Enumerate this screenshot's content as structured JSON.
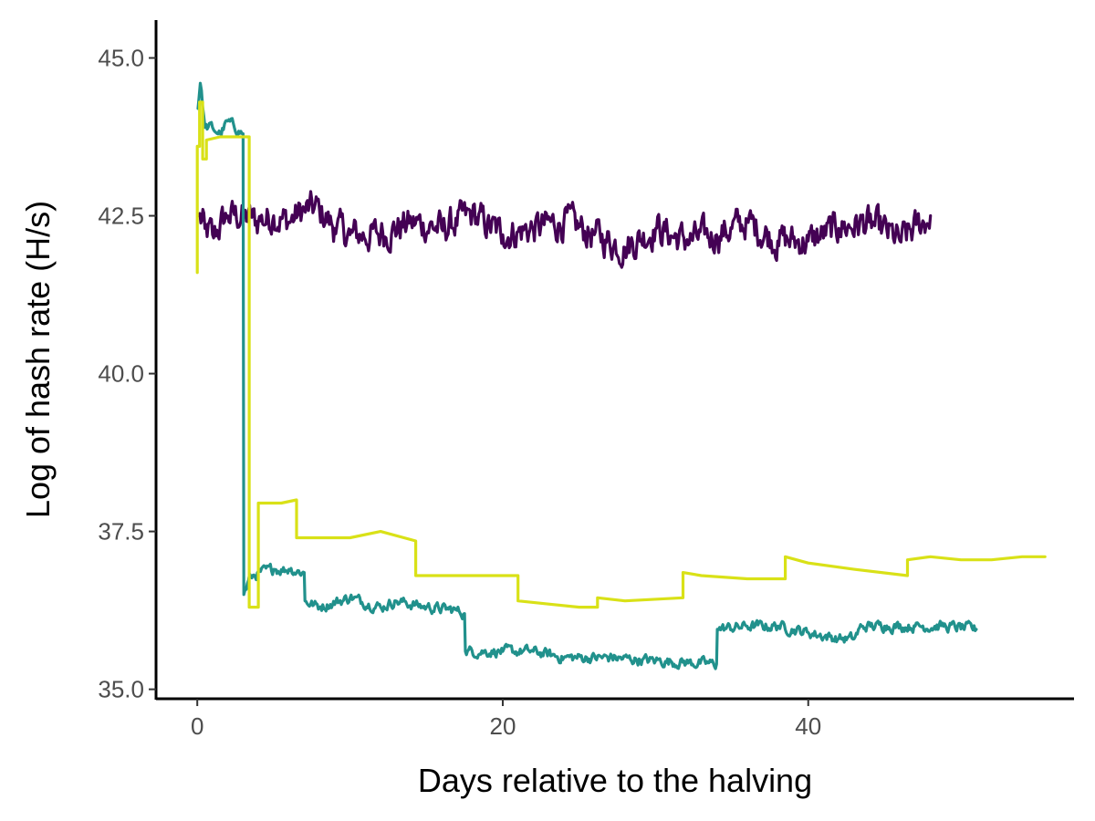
{
  "chart_data": {
    "type": "line",
    "title": "",
    "xlabel": "Days relative to the halving",
    "ylabel": "Log of hash rate (H/s)",
    "xlim": [
      -2.7,
      57.4
    ],
    "ylim": [
      34.85,
      45.6
    ],
    "xticks": [
      0,
      20,
      40
    ],
    "xtick_labels": [
      "0",
      "20",
      "40"
    ],
    "yticks": [
      35.0,
      37.5,
      40.0,
      42.5,
      45.0
    ],
    "ytick_labels": [
      "35.0",
      "37.5",
      "40.0",
      "42.5",
      "45.0"
    ],
    "grid": false,
    "legend": "none",
    "series": [
      {
        "color": "#440154",
        "noise": 0.22,
        "points": [
          [
            0.1,
            42.5
          ],
          [
            0.5,
            42.3
          ],
          [
            1,
            42.2
          ],
          [
            2,
            42.5
          ],
          [
            3,
            42.5
          ],
          [
            4,
            42.4
          ],
          [
            5,
            42.5
          ],
          [
            6,
            42.4
          ],
          [
            7,
            42.6
          ],
          [
            8,
            42.6
          ],
          [
            9,
            42.3
          ],
          [
            10,
            42.2
          ],
          [
            12,
            42.2
          ],
          [
            14,
            42.4
          ],
          [
            16,
            42.3
          ],
          [
            18,
            42.5
          ],
          [
            20,
            42.2
          ],
          [
            22,
            42.3
          ],
          [
            24,
            42.4
          ],
          [
            26,
            42.2
          ],
          [
            28,
            42.0
          ],
          [
            30,
            42.3
          ],
          [
            32,
            42.1
          ],
          [
            34,
            42.2
          ],
          [
            36,
            42.4
          ],
          [
            38,
            42.1
          ],
          [
            40,
            42.1
          ],
          [
            42,
            42.3
          ],
          [
            44,
            42.4
          ],
          [
            46,
            42.1
          ],
          [
            48,
            42.5
          ]
        ]
      },
      {
        "color": "#21918c",
        "noise": 0.07,
        "points": [
          [
            0.05,
            44.2
          ],
          [
            0.2,
            44.6
          ],
          [
            0.5,
            43.9
          ],
          [
            1,
            43.9
          ],
          [
            1.5,
            43.8
          ],
          [
            2,
            44.0
          ],
          [
            3,
            43.8
          ],
          [
            3.05,
            36.5
          ],
          [
            3.5,
            36.8
          ],
          [
            5,
            36.9
          ],
          [
            6,
            36.9
          ],
          [
            7,
            36.85
          ],
          [
            7.05,
            36.4
          ],
          [
            8,
            36.3
          ],
          [
            10,
            36.45
          ],
          [
            12,
            36.3
          ],
          [
            13,
            36.4
          ],
          [
            15,
            36.3
          ],
          [
            17,
            36.25
          ],
          [
            17.5,
            36.2
          ],
          [
            17.55,
            35.6
          ],
          [
            20,
            35.6
          ],
          [
            22,
            35.6
          ],
          [
            24,
            35.5
          ],
          [
            27,
            35.5
          ],
          [
            30,
            35.45
          ],
          [
            34,
            35.4
          ],
          [
            34.05,
            35.95
          ],
          [
            36,
            36.0
          ],
          [
            38,
            36.0
          ],
          [
            40,
            35.9
          ],
          [
            42,
            35.8
          ],
          [
            43,
            35.8
          ],
          [
            43.5,
            36.0
          ],
          [
            45,
            36.0
          ],
          [
            47,
            36.0
          ],
          [
            49,
            36.0
          ],
          [
            51,
            35.95
          ]
        ]
      },
      {
        "color": "#d9e117",
        "noise": 0,
        "points": [
          [
            0,
            41.6
          ],
          [
            0,
            43.6
          ],
          [
            0.15,
            43.6
          ],
          [
            0.15,
            44.3
          ],
          [
            0.35,
            44.3
          ],
          [
            0.35,
            43.4
          ],
          [
            0.6,
            43.4
          ],
          [
            0.6,
            43.7
          ],
          [
            1.5,
            43.75
          ],
          [
            3.4,
            43.75
          ],
          [
            3.4,
            36.3
          ],
          [
            4.0,
            36.3
          ],
          [
            4.0,
            37.95
          ],
          [
            5.5,
            37.95
          ],
          [
            6.5,
            38.0
          ],
          [
            6.5,
            37.4
          ],
          [
            8,
            37.4
          ],
          [
            10,
            37.4
          ],
          [
            12,
            37.5
          ],
          [
            14.3,
            37.35
          ],
          [
            14.3,
            36.8
          ],
          [
            16,
            36.8
          ],
          [
            18,
            36.8
          ],
          [
            21,
            36.8
          ],
          [
            21,
            36.4
          ],
          [
            23,
            36.35
          ],
          [
            25,
            36.3
          ],
          [
            26.2,
            36.3
          ],
          [
            26.2,
            36.45
          ],
          [
            28,
            36.4
          ],
          [
            31.8,
            36.45
          ],
          [
            31.8,
            36.85
          ],
          [
            33,
            36.8
          ],
          [
            36,
            36.75
          ],
          [
            38.5,
            36.75
          ],
          [
            38.5,
            37.1
          ],
          [
            40,
            37.0
          ],
          [
            43,
            36.9
          ],
          [
            46.5,
            36.8
          ],
          [
            46.5,
            37.05
          ],
          [
            48,
            37.1
          ],
          [
            50,
            37.05
          ],
          [
            52,
            37.05
          ],
          [
            54,
            37.1
          ],
          [
            55.5,
            37.1
          ]
        ]
      }
    ]
  }
}
